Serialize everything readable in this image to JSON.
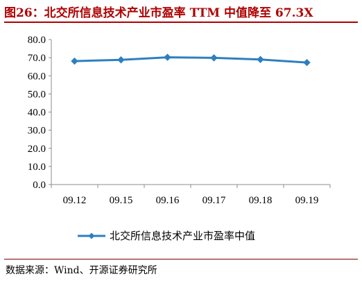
{
  "header": {
    "title": "图26：北交所信息技术产业市盈率 TTM 中值降至 67.3X"
  },
  "footer": {
    "source": "数据来源：Wind、开源证券研究所"
  },
  "chart_data": {
    "type": "line",
    "title": "图26：北交所信息技术产业市盈率 TTM 中值降至 67.3X",
    "categories": [
      "09.12",
      "09.15",
      "09.16",
      "09.17",
      "09.18",
      "09.19"
    ],
    "series": [
      {
        "name": "北交所信息技术产业市盈率中值",
        "values": [
          68.1,
          68.8,
          70.2,
          69.9,
          69.0,
          67.3
        ]
      }
    ],
    "yticks": [
      "0.0",
      "10.0",
      "20.0",
      "30.0",
      "40.0",
      "50.0",
      "60.0",
      "70.0",
      "80.0"
    ],
    "ylim": [
      0,
      80
    ],
    "grid": false,
    "legend": "bottom",
    "marker": "diamond",
    "line_color": "#2e7fc0"
  }
}
